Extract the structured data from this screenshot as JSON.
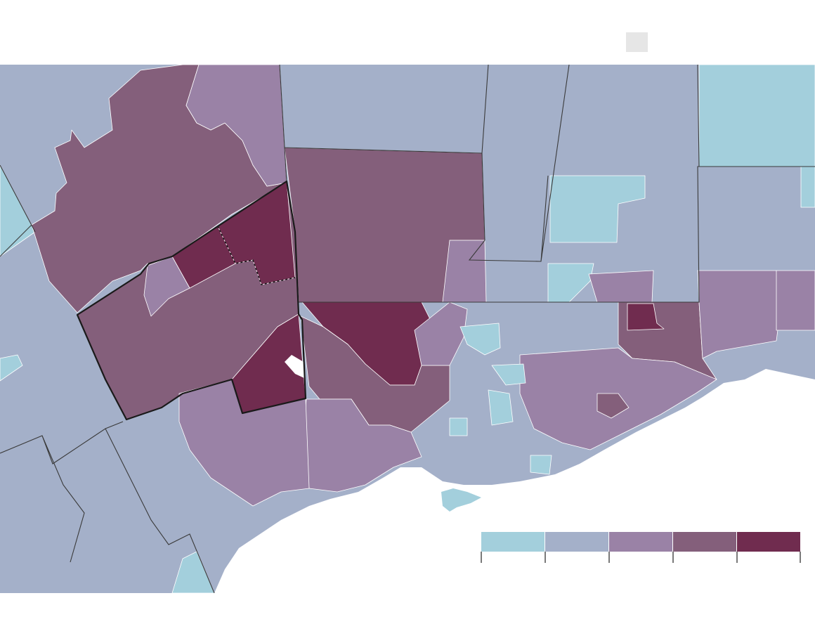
{
  "map": {
    "palette": [
      "#a3cfdc",
      "#a4b0c9",
      "#9a82a6",
      "#845f7b",
      "#702c4f"
    ],
    "lake_color": "#ffffff",
    "no_data_color": "#ffffff"
  },
  "legend": {
    "classes": [
      {
        "color": "#a3cfdc"
      },
      {
        "color": "#a4b0c9"
      },
      {
        "color": "#9a82a6"
      },
      {
        "color": "#845f7b"
      },
      {
        "color": "#702c4f"
      }
    ]
  },
  "key": {
    "swatch_color": "#e6e6e6"
  }
}
